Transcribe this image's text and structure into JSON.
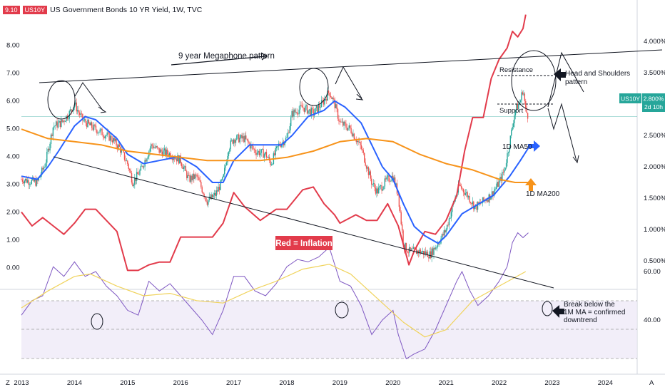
{
  "header": {
    "value_badge": "9.10",
    "symbol_badge": "US10Y",
    "title": "US Government Bonds 10 YR Yield, 1W, TVC",
    "left_badge_color": "#e23b4b",
    "symbol_badge_color": "#e23b4b"
  },
  "price_tag": {
    "symbol": "US10Y",
    "value": "2.800%",
    "countdown": "2d 10h",
    "color": "#26a69a"
  },
  "corner_labels": {
    "left": "Z",
    "right": "A"
  },
  "chart_data": [
    {
      "type": "candlestick+line",
      "title": "US Government Bonds 10 YR Yield, 1W, TVC",
      "x_ticks": [
        "2013",
        "2014",
        "2015",
        "2016",
        "2017",
        "2018",
        "2019",
        "2020",
        "2021",
        "2022",
        "2023",
        "2024"
      ],
      "right_ticks": [
        "4.000%",
        "3.500%",
        "3.000%",
        "2.500%",
        "2.000%",
        "1.500%",
        "1.000%",
        "0.500%"
      ],
      "left_ticks": [
        "8.00",
        "7.00",
        "6.00",
        "5.00",
        "4.00",
        "3.00",
        "2.00",
        "1.00",
        "0.00"
      ],
      "yield_range": [
        0,
        4.0
      ],
      "inflation_range": [
        -0.5,
        9.1
      ],
      "yield_close": [
        [
          2013.0,
          1.8
        ],
        [
          2013.3,
          1.75
        ],
        [
          2013.45,
          2.05
        ],
        [
          2013.6,
          2.65
        ],
        [
          2013.75,
          2.7
        ],
        [
          2013.9,
          2.85
        ],
        [
          2014.0,
          3.0
        ],
        [
          2014.15,
          2.75
        ],
        [
          2014.3,
          2.65
        ],
        [
          2014.5,
          2.55
        ],
        [
          2014.7,
          2.45
        ],
        [
          2014.85,
          2.3
        ],
        [
          2015.0,
          2.05
        ],
        [
          2015.1,
          1.75
        ],
        [
          2015.25,
          1.95
        ],
        [
          2015.45,
          2.35
        ],
        [
          2015.6,
          2.25
        ],
        [
          2015.8,
          2.2
        ],
        [
          2016.0,
          2.1
        ],
        [
          2016.15,
          1.8
        ],
        [
          2016.3,
          1.85
        ],
        [
          2016.5,
          1.45
        ],
        [
          2016.65,
          1.55
        ],
        [
          2016.8,
          1.8
        ],
        [
          2016.9,
          2.3
        ],
        [
          2017.0,
          2.45
        ],
        [
          2017.2,
          2.45
        ],
        [
          2017.4,
          2.25
        ],
        [
          2017.6,
          2.2
        ],
        [
          2017.7,
          2.05
        ],
        [
          2017.85,
          2.35
        ],
        [
          2018.0,
          2.45
        ],
        [
          2018.1,
          2.85
        ],
        [
          2018.3,
          2.95
        ],
        [
          2018.5,
          2.85
        ],
        [
          2018.7,
          3.05
        ],
        [
          2018.8,
          3.2
        ],
        [
          2018.9,
          3.0
        ],
        [
          2019.0,
          2.7
        ],
        [
          2019.2,
          2.6
        ],
        [
          2019.4,
          2.3
        ],
        [
          2019.6,
          1.75
        ],
        [
          2019.7,
          1.6
        ],
        [
          2019.9,
          1.8
        ],
        [
          2020.0,
          1.85
        ],
        [
          2020.1,
          1.55
        ],
        [
          2020.2,
          0.75
        ],
        [
          2020.3,
          0.65
        ],
        [
          2020.5,
          0.65
        ],
        [
          2020.7,
          0.6
        ],
        [
          2020.9,
          0.85
        ],
        [
          2021.0,
          1.0
        ],
        [
          2021.15,
          1.45
        ],
        [
          2021.25,
          1.7
        ],
        [
          2021.4,
          1.55
        ],
        [
          2021.55,
          1.35
        ],
        [
          2021.7,
          1.45
        ],
        [
          2021.85,
          1.55
        ],
        [
          2022.0,
          1.75
        ],
        [
          2022.1,
          1.95
        ],
        [
          2022.2,
          2.4
        ],
        [
          2022.3,
          2.9
        ],
        [
          2022.4,
          3.05
        ],
        [
          2022.45,
          3.25
        ],
        [
          2022.5,
          2.9
        ],
        [
          2022.55,
          2.8
        ]
      ],
      "series": [
        {
          "name": "Red = Inflation",
          "color": "#e23b4b",
          "axis": "left",
          "points": [
            [
              2013.0,
              2.0
            ],
            [
              2013.2,
              1.5
            ],
            [
              2013.4,
              1.8
            ],
            [
              2013.6,
              1.5
            ],
            [
              2013.8,
              1.2
            ],
            [
              2014.0,
              1.6
            ],
            [
              2014.2,
              2.1
            ],
            [
              2014.4,
              2.1
            ],
            [
              2014.6,
              1.7
            ],
            [
              2014.8,
              1.3
            ],
            [
              2015.0,
              -0.1
            ],
            [
              2015.2,
              -0.1
            ],
            [
              2015.4,
              0.1
            ],
            [
              2015.6,
              0.2
            ],
            [
              2015.8,
              0.2
            ],
            [
              2016.0,
              1.1
            ],
            [
              2016.3,
              1.1
            ],
            [
              2016.6,
              1.1
            ],
            [
              2016.8,
              1.6
            ],
            [
              2017.0,
              2.7
            ],
            [
              2017.2,
              2.2
            ],
            [
              2017.5,
              1.7
            ],
            [
              2017.8,
              2.1
            ],
            [
              2018.0,
              2.1
            ],
            [
              2018.3,
              2.8
            ],
            [
              2018.5,
              2.9
            ],
            [
              2018.7,
              2.3
            ],
            [
              2018.9,
              1.9
            ],
            [
              2019.0,
              1.6
            ],
            [
              2019.3,
              1.9
            ],
            [
              2019.5,
              1.7
            ],
            [
              2019.7,
              1.7
            ],
            [
              2019.9,
              2.3
            ],
            [
              2020.1,
              1.5
            ],
            [
              2020.3,
              0.1
            ],
            [
              2020.4,
              0.6
            ],
            [
              2020.6,
              1.3
            ],
            [
              2020.8,
              1.2
            ],
            [
              2021.0,
              1.7
            ],
            [
              2021.2,
              2.6
            ],
            [
              2021.35,
              4.2
            ],
            [
              2021.5,
              5.4
            ],
            [
              2021.7,
              5.4
            ],
            [
              2021.85,
              6.8
            ],
            [
              2022.0,
              7.5
            ],
            [
              2022.15,
              7.9
            ],
            [
              2022.25,
              8.5
            ],
            [
              2022.35,
              8.3
            ],
            [
              2022.45,
              8.6
            ],
            [
              2022.5,
              9.1
            ]
          ]
        },
        {
          "name": "1D MA50",
          "color": "#2962ff",
          "axis": "right",
          "points": [
            [
              2013.0,
              1.85
            ],
            [
              2013.3,
              1.8
            ],
            [
              2013.5,
              2.0
            ],
            [
              2013.7,
              2.25
            ],
            [
              2014.0,
              2.65
            ],
            [
              2014.2,
              2.8
            ],
            [
              2014.4,
              2.75
            ],
            [
              2014.6,
              2.6
            ],
            [
              2014.8,
              2.45
            ],
            [
              2015.0,
              2.2
            ],
            [
              2015.3,
              2.05
            ],
            [
              2015.6,
              2.1
            ],
            [
              2015.9,
              2.15
            ],
            [
              2016.0,
              2.15
            ],
            [
              2016.3,
              2.0
            ],
            [
              2016.6,
              1.75
            ],
            [
              2016.8,
              1.75
            ],
            [
              2017.0,
              2.1
            ],
            [
              2017.3,
              2.35
            ],
            [
              2017.6,
              2.35
            ],
            [
              2017.9,
              2.35
            ],
            [
              2018.1,
              2.5
            ],
            [
              2018.4,
              2.8
            ],
            [
              2018.7,
              2.9
            ],
            [
              2018.9,
              3.05
            ],
            [
              2019.1,
              2.95
            ],
            [
              2019.4,
              2.7
            ],
            [
              2019.6,
              2.35
            ],
            [
              2019.8,
              2.0
            ],
            [
              2020.0,
              1.8
            ],
            [
              2020.2,
              1.4
            ],
            [
              2020.4,
              1.05
            ],
            [
              2020.6,
              0.9
            ],
            [
              2020.85,
              0.78
            ],
            [
              2021.0,
              0.9
            ],
            [
              2021.3,
              1.25
            ],
            [
              2021.6,
              1.4
            ],
            [
              2021.9,
              1.55
            ],
            [
              2022.2,
              1.85
            ],
            [
              2022.4,
              2.1
            ],
            [
              2022.55,
              2.3
            ]
          ]
        },
        {
          "name": "1D MA200",
          "color": "#f7931a",
          "axis": "right",
          "points": [
            [
              2013.0,
              2.6
            ],
            [
              2013.5,
              2.45
            ],
            [
              2014.0,
              2.4
            ],
            [
              2014.5,
              2.35
            ],
            [
              2015.0,
              2.25
            ],
            [
              2015.5,
              2.2
            ],
            [
              2016.0,
              2.15
            ],
            [
              2016.5,
              2.1
            ],
            [
              2017.0,
              2.1
            ],
            [
              2017.5,
              2.1
            ],
            [
              2018.0,
              2.15
            ],
            [
              2018.5,
              2.25
            ],
            [
              2019.0,
              2.4
            ],
            [
              2019.5,
              2.45
            ],
            [
              2020.0,
              2.4
            ],
            [
              2020.5,
              2.2
            ],
            [
              2021.0,
              2.05
            ],
            [
              2021.5,
              1.95
            ],
            [
              2022.0,
              1.8
            ],
            [
              2022.3,
              1.75
            ],
            [
              2022.55,
              1.75
            ]
          ]
        }
      ],
      "annotations": {
        "megaphone": "9 year Megaphone pattern",
        "resistance": "Resistance",
        "support": "Support",
        "hs": "Head and Shoulders pattern",
        "ma50": "1D MA50",
        "ma200": "1D MA200",
        "inflation": "Red = Inflation",
        "break_text": "Break below the 1M MA = confirmed downtrend"
      }
    },
    {
      "type": "line",
      "panel": "rsi",
      "y_ticks": [
        "60.00",
        "40.00"
      ],
      "series": [
        {
          "name": "RSI",
          "color": "#7e57c2",
          "points": [
            [
              2013.0,
              42
            ],
            [
              2013.2,
              48
            ],
            [
              2013.4,
              50
            ],
            [
              2013.6,
              62
            ],
            [
              2013.8,
              58
            ],
            [
              2014.0,
              64
            ],
            [
              2014.2,
              58
            ],
            [
              2014.4,
              60
            ],
            [
              2014.6,
              54
            ],
            [
              2014.8,
              50
            ],
            [
              2015.0,
              44
            ],
            [
              2015.2,
              42
            ],
            [
              2015.4,
              56
            ],
            [
              2015.6,
              52
            ],
            [
              2015.8,
              55
            ],
            [
              2016.0,
              50
            ],
            [
              2016.2,
              45
            ],
            [
              2016.4,
              40
            ],
            [
              2016.6,
              34
            ],
            [
              2016.8,
              44
            ],
            [
              2017.0,
              58
            ],
            [
              2017.2,
              58
            ],
            [
              2017.4,
              52
            ],
            [
              2017.6,
              50
            ],
            [
              2017.8,
              55
            ],
            [
              2018.0,
              62
            ],
            [
              2018.2,
              65
            ],
            [
              2018.4,
              64
            ],
            [
              2018.6,
              66
            ],
            [
              2018.8,
              70
            ],
            [
              2019.0,
              56
            ],
            [
              2019.2,
              54
            ],
            [
              2019.4,
              46
            ],
            [
              2019.6,
              34
            ],
            [
              2019.8,
              40
            ],
            [
              2020.0,
              44
            ],
            [
              2020.1,
              34
            ],
            [
              2020.25,
              24
            ],
            [
              2020.4,
              26
            ],
            [
              2020.6,
              28
            ],
            [
              2020.8,
              36
            ],
            [
              2021.0,
              46
            ],
            [
              2021.2,
              56
            ],
            [
              2021.3,
              60
            ],
            [
              2021.45,
              52
            ],
            [
              2021.6,
              46
            ],
            [
              2021.8,
              50
            ],
            [
              2022.0,
              56
            ],
            [
              2022.15,
              62
            ],
            [
              2022.25,
              72
            ],
            [
              2022.35,
              76
            ],
            [
              2022.45,
              74
            ],
            [
              2022.55,
              76
            ]
          ]
        },
        {
          "name": "MA",
          "color": "#f0d35c",
          "points": [
            [
              2013.0,
              45
            ],
            [
              2013.5,
              52
            ],
            [
              2014.0,
              58
            ],
            [
              2014.3,
              59
            ],
            [
              2014.8,
              54
            ],
            [
              2015.3,
              50
            ],
            [
              2015.8,
              51
            ],
            [
              2016.3,
              48
            ],
            [
              2016.8,
              47
            ],
            [
              2017.3,
              52
            ],
            [
              2017.8,
              56
            ],
            [
              2018.3,
              61
            ],
            [
              2018.8,
              63
            ],
            [
              2019.2,
              59
            ],
            [
              2019.7,
              49
            ],
            [
              2020.2,
              39
            ],
            [
              2020.6,
              33
            ],
            [
              2021.0,
              36
            ],
            [
              2021.5,
              48
            ],
            [
              2022.0,
              54
            ],
            [
              2022.5,
              60
            ]
          ]
        }
      ]
    }
  ]
}
